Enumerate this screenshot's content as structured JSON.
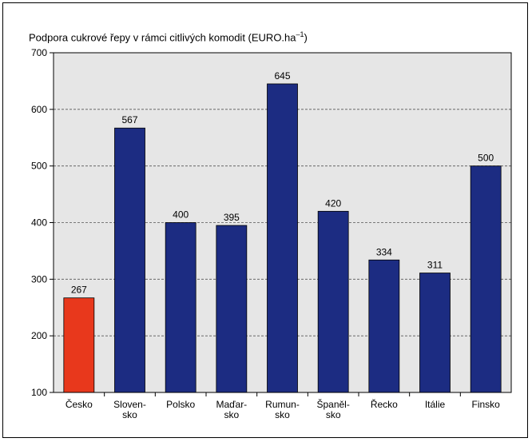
{
  "chart_data": {
    "type": "bar",
    "title": "Podpora cukrové řepy v rámci citlivých komodit (EURO.ha",
    "title_sup": "–1",
    "title_end": ")",
    "categories": [
      [
        "Česko"
      ],
      [
        "Sloven-",
        "sko"
      ],
      [
        "Polsko"
      ],
      [
        "Maďar-",
        "sko"
      ],
      [
        "Rumun-",
        "sko"
      ],
      [
        "Španěl-",
        "sko"
      ],
      [
        "Řecko"
      ],
      [
        "Itálie"
      ],
      [
        "Finsko"
      ]
    ],
    "values": [
      267,
      567,
      400,
      395,
      645,
      420,
      334,
      311,
      500
    ],
    "ylim": [
      100,
      700
    ],
    "yticks": [
      100,
      200,
      300,
      400,
      500,
      600,
      700
    ],
    "grid": true,
    "colors": {
      "highlight": "#e8381c",
      "bar": "#1c2c82",
      "plot_bg": "#e6e6e6"
    },
    "highlight_index": 0
  }
}
